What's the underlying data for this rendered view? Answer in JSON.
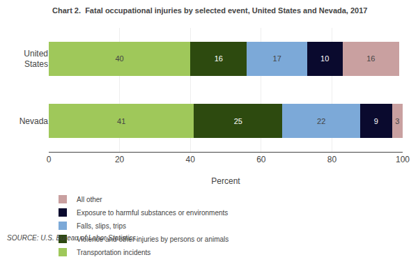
{
  "chart_data": {
    "type": "bar",
    "orientation": "horizontal",
    "stacked": true,
    "title": "Chart 2.  Fatal occupational injuries by selected event, United States and Nevada, 2017",
    "categories": [
      "United\nStates",
      "Nevada"
    ],
    "series": [
      {
        "name": "Transportation incidents",
        "color": "#9fc85a",
        "values": [
          40,
          41
        ]
      },
      {
        "name": "Violence and other injuries by persons or animals",
        "color": "#2d4a0f",
        "values": [
          16,
          25
        ]
      },
      {
        "name": "Falls, slips, trips",
        "color": "#7ca9d8",
        "values": [
          17,
          22
        ]
      },
      {
        "name": "Exposure to harmful substances or environments",
        "color": "#0a0a2e",
        "values": [
          10,
          9
        ]
      },
      {
        "name": "All other",
        "color": "#c9a0a0",
        "values": [
          16,
          3
        ]
      }
    ],
    "xlabel": "Percent",
    "xlim": [
      0,
      100
    ],
    "xticks": [
      0,
      20,
      40,
      60,
      80,
      100
    ],
    "grid": true,
    "legend": "bottom",
    "data_labels": true,
    "source": "SOURCE: U.S. Bureau of Labor Statistics."
  }
}
